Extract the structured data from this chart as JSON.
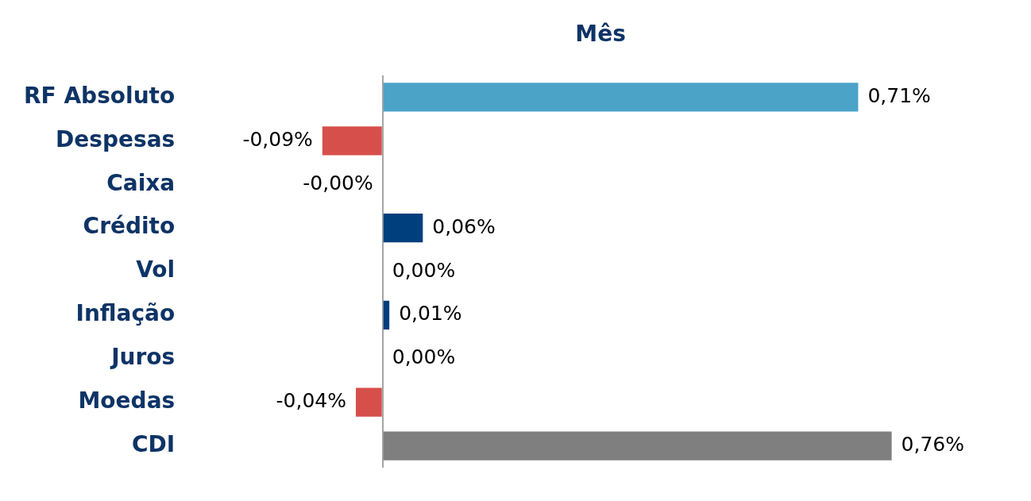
{
  "chart_data": {
    "type": "bar",
    "orientation": "horizontal",
    "title": "Mês",
    "categories": [
      "RF Absoluto",
      "Despesas",
      "Caixa",
      "Crédito",
      "Vol",
      "Inflação",
      "Juros",
      "Moedas",
      "CDI"
    ],
    "values": [
      0.71,
      -0.09,
      -0.0,
      0.06,
      0.0,
      0.01,
      0.0,
      -0.04,
      0.76
    ],
    "colors": [
      "#4ba3c8",
      "#d64f4b",
      "#d64f4b",
      "#003f7d",
      "#003f7d",
      "#003f7d",
      "#003f7d",
      "#d64f4b",
      "#7f7f7f"
    ],
    "value_labels": [
      "0,71%",
      "-0,09%",
      "-0,00%",
      "0,06%",
      "0,00%",
      "0,01%",
      "0,00%",
      "-0,04%",
      "0,76%"
    ],
    "tick_labels": "y",
    "legend": false
  }
}
